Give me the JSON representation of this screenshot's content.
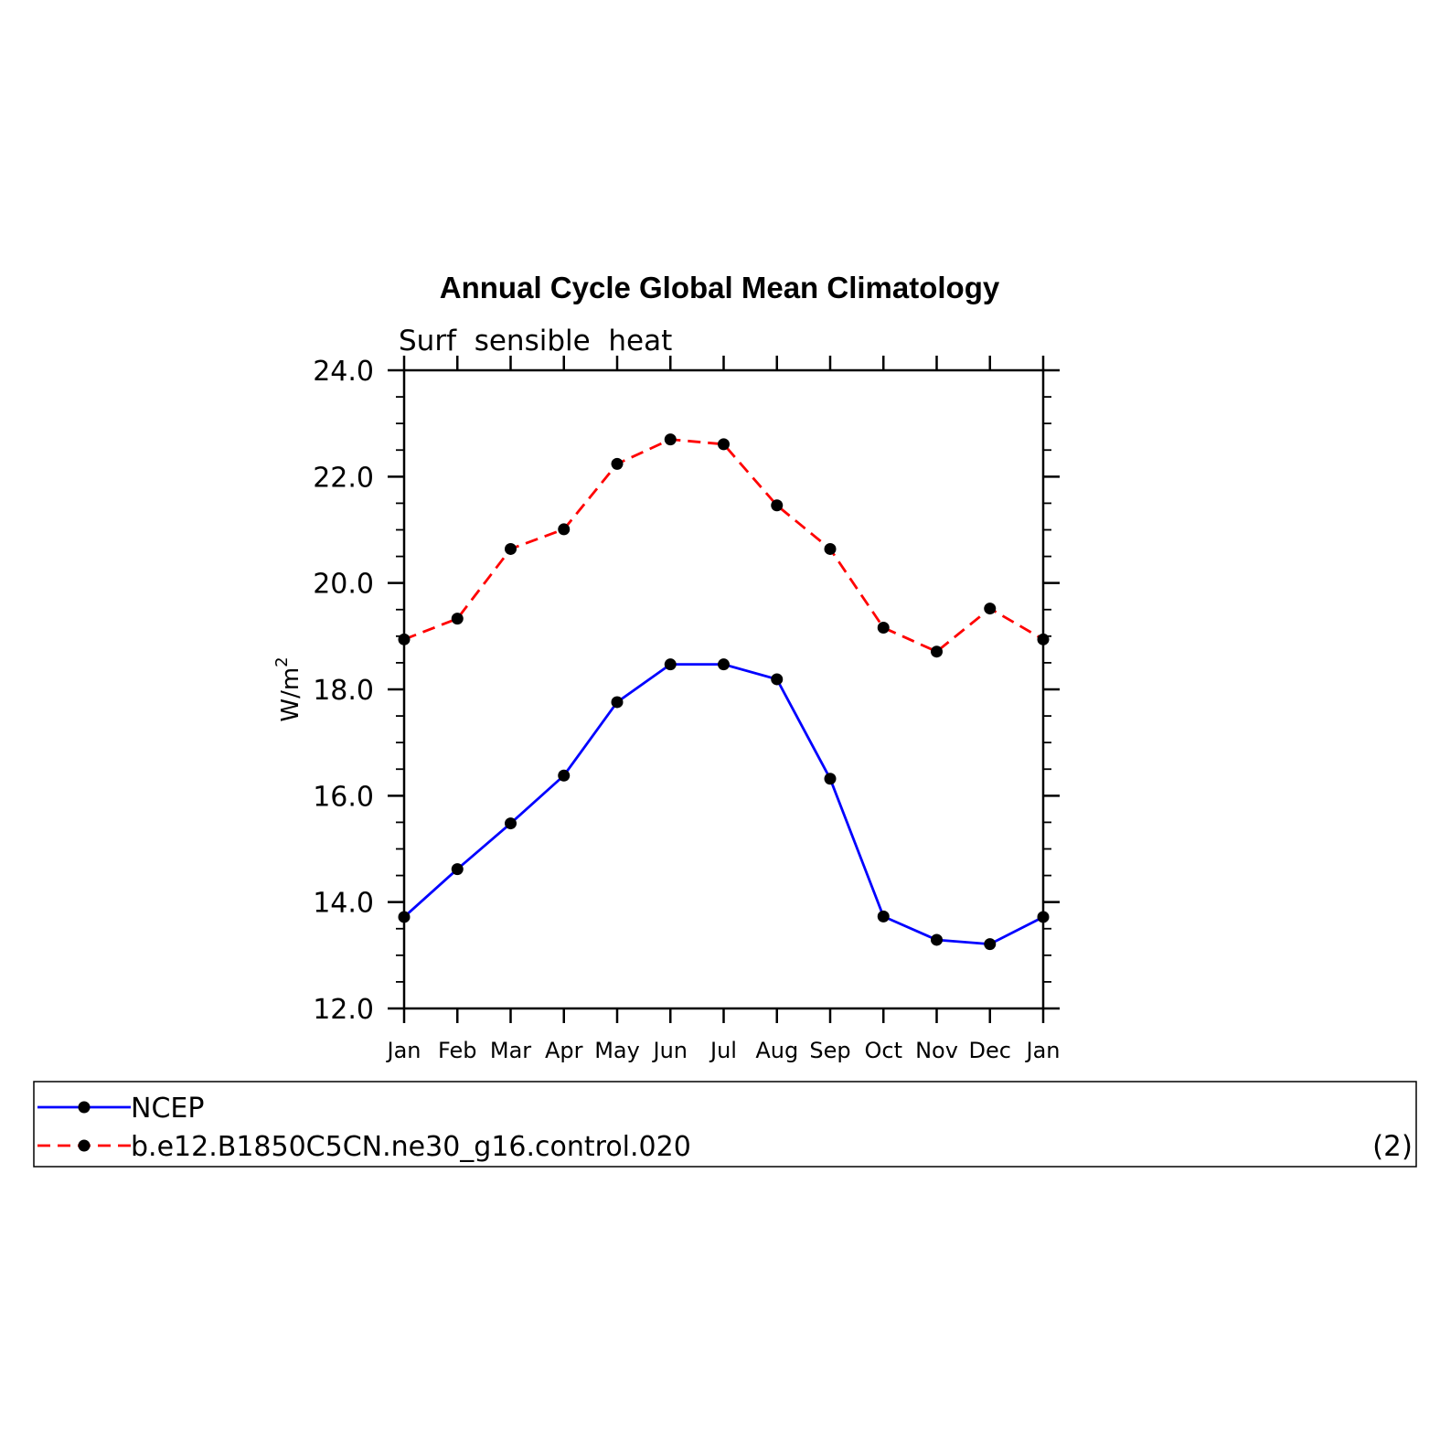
{
  "chart_data": {
    "type": "line",
    "title": "Annual Cycle Global Mean Climatology",
    "subtitle": "Surf  sensible  heat",
    "xlabel": "",
    "ylabel_base": "W/m",
    "ylabel_superscript": "2",
    "categories": [
      "Jan",
      "Feb",
      "Mar",
      "Apr",
      "May",
      "Jun",
      "Jul",
      "Aug",
      "Sep",
      "Oct",
      "Nov",
      "Dec",
      "Jan"
    ],
    "ylim": [
      12.0,
      24.0
    ],
    "yticks": [
      "12.0",
      "14.0",
      "16.0",
      "18.0",
      "20.0",
      "22.0",
      "24.0"
    ],
    "series": [
      {
        "name": "NCEP",
        "color": "#0000ff",
        "dash": "solid",
        "values": [
          13.72,
          14.62,
          15.48,
          16.38,
          17.76,
          18.47,
          18.47,
          18.19,
          16.32,
          13.73,
          13.29,
          13.21,
          13.72
        ]
      },
      {
        "name": "b.e12.B1850C5CN.ne30_g16.control.020",
        "color": "#ff0000",
        "dash": "dashed",
        "values": [
          18.94,
          19.33,
          20.64,
          21.01,
          22.24,
          22.7,
          22.61,
          21.46,
          20.64,
          19.16,
          18.71,
          19.52,
          18.94
        ]
      }
    ],
    "legend_note": "(2)",
    "grid": false,
    "legend_position": "bottom"
  }
}
